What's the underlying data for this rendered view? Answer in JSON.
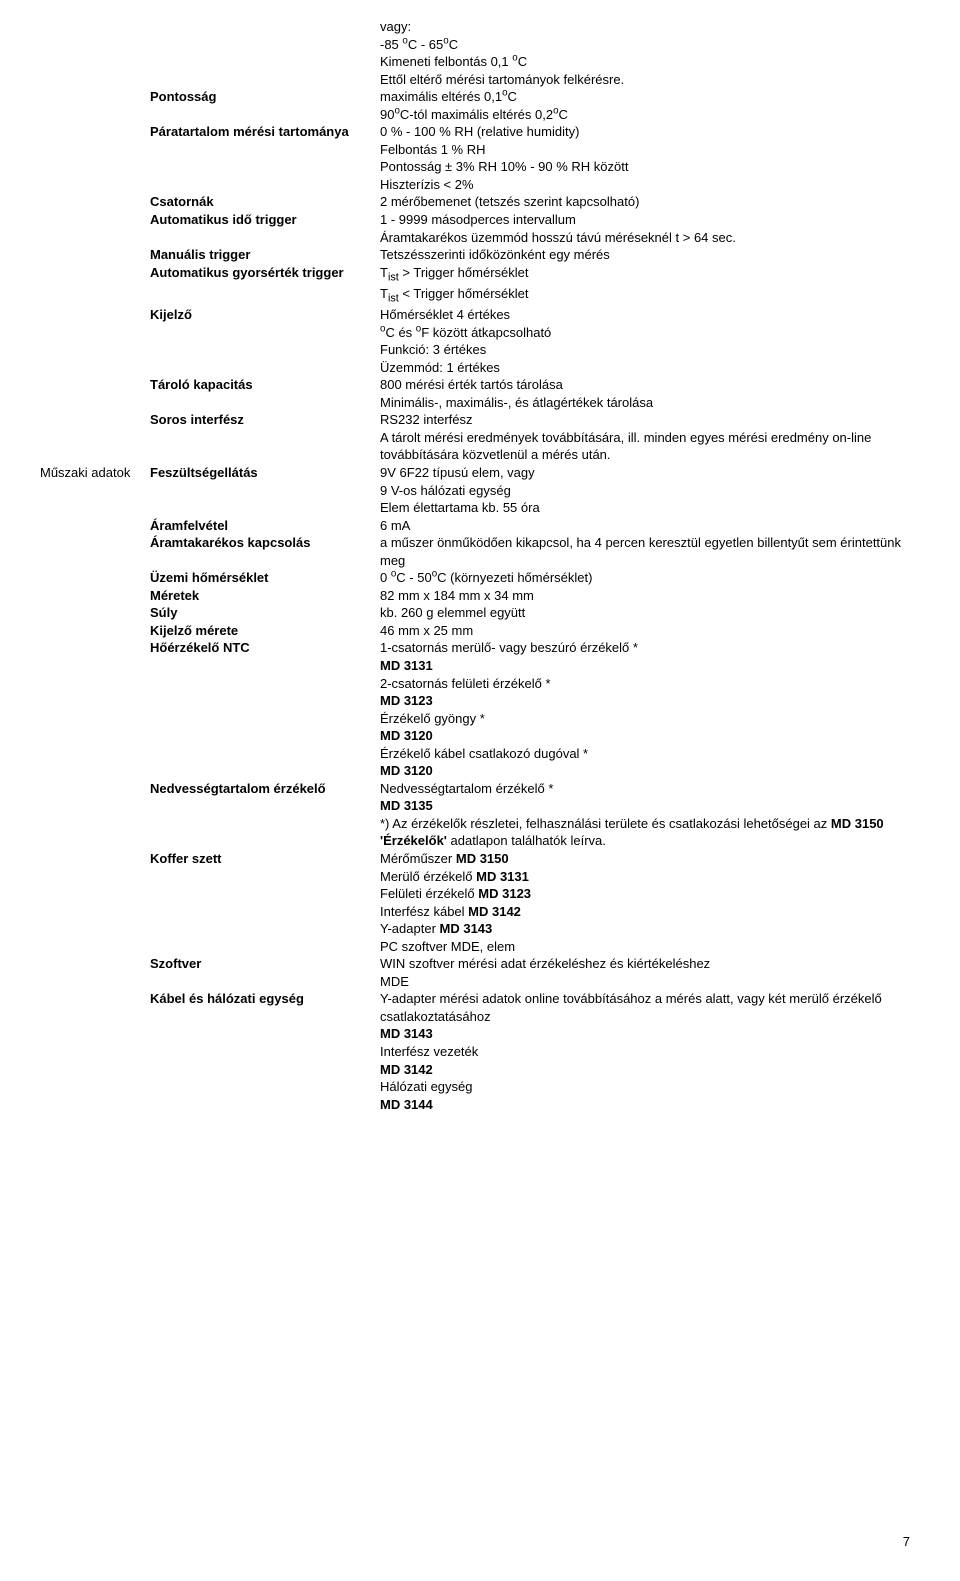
{
  "side_label": "Műszaki adatok",
  "rows": [
    {
      "label": "",
      "value": [
        "vagy:",
        "-85 °C  - 65°C",
        "Kimeneti felbontás 0,1 °C",
        "Ettől eltérő mérési tartományok felkérésre."
      ]
    },
    {
      "label": "Pontosság",
      "value": [
        "maximális eltérés 0,1°C",
        "90°C-tól maximális eltérés 0,2°C"
      ]
    },
    {
      "label": "Páratartalom mérési tartománya",
      "value": [
        "0 % - 100 % RH (relative humidity)",
        "Felbontás 1 % RH",
        "Pontosság ± 3% RH 10% - 90 % RH között",
        "Hiszterízis < 2%"
      ]
    },
    {
      "label": "Csatornák",
      "value": [
        "2 mérőbemenet (tetszés szerint kapcsolható)"
      ]
    },
    {
      "label": "Automatikus idő trigger",
      "value": [
        "1 - 9999 másodperces intervallum",
        "Áramtakarékos üzemmód hosszú távú méréseknél  t > 64 sec."
      ]
    },
    {
      "label": "Manuális trigger",
      "value": [
        "Tetszésszerinti időközönként egy mérés"
      ]
    },
    {
      "label": "Automatikus gyorsérték trigger",
      "value": [
        "Tist > Trigger hőmérséklet",
        "Tist < Trigger hőmérséklet"
      ]
    },
    {
      "label": "Kijelző",
      "value": [
        "Hőmérséklet 4 értékes",
        "°C és °F között átkapcsolható",
        "Funkció:   3 értékes",
        "Üzemmód: 1 értékes"
      ]
    },
    {
      "label": "Tároló kapacitás",
      "value": [
        "800 mérési érték tartós tárolása",
        "Minimális-, maximális-, és átlagértékek tárolása"
      ]
    },
    {
      "label": "Soros interfész",
      "value": [
        "RS232 interfész",
        "A tárolt mérési eredmények továbbítására, ill. minden egyes mérési eredmény on-line továbbítására közvetlenül a mérés után."
      ]
    },
    {
      "label": "Feszültségellátás",
      "value": [
        "9V 6F22 típusú elem, vagy",
        "9 V-os hálózati egység",
        "Elem élettartama kb. 55 óra"
      ],
      "side": true
    },
    {
      "label": "Áramfelvétel",
      "value": [
        "6 mA"
      ]
    },
    {
      "label": "Áramtakarékos kapcsolás",
      "value": [
        "a műszer önműködően kikapcsol, ha 4 percen keresztül egyetlen billentyűt sem érintettünk meg"
      ]
    },
    {
      "label": "Üzemi hőmérséklet",
      "value": [
        "0 °C - 50°C (környezeti hőmérséklet)"
      ]
    },
    {
      "label": "Méretek",
      "value": [
        "82 mm x 184 mm x 34 mm"
      ]
    },
    {
      "label": "Súly",
      "value": [
        "kb. 260 g elemmel együtt"
      ]
    },
    {
      "label": "Kijelző mérete",
      "value": [
        "46 mm x 25 mm"
      ]
    },
    {
      "label": "",
      "value": [
        " "
      ]
    },
    {
      "label": "Hőérzékelő NTC",
      "value": [
        "1-csatornás merülő- vagy beszúró érzékelő *",
        "MD 3131",
        "2-csatornás felületi érzékelő *",
        "MD 3123",
        "Érzékelő gyöngy *",
        "MD 3120",
        "Érzékelő kábel csatlakozó dugóval *",
        "MD 3120"
      ]
    },
    {
      "label": "Nedvességtartalom érzékelő",
      "value": [
        "Nedvességtartalom érzékelő *",
        "MD 3135",
        "*) Az érzékelők részletei, felhasználási területe és csatlakozási lehetőségei az MD 3150 'Érzékelők' adatlapon találhatók leírva."
      ]
    },
    {
      "label": "Koffer szett",
      "value": [
        "Mérőműszer MD 3150",
        "Merülő érzékelő MD 3131",
        "Felületi érzékelő MD 3123",
        "Interfész kábel MD 3142",
        "Y-adapter MD 3143",
        "PC szoftver MDE, elem"
      ]
    },
    {
      "label": "Szoftver",
      "value": [
        "WIN szoftver mérési adat érzékeléshez és kiértékeléshez",
        "MDE"
      ]
    },
    {
      "label": "Kábel és hálózati egység",
      "value": [
        "Y-adapter mérési adatok online továbbításához a mérés alatt, vagy két merülő érzékelő csatlakoztatásához",
        "MD 3143",
        "Interfész vezeték",
        "MD 3142",
        "Hálózati egység",
        "MD 3144"
      ]
    }
  ],
  "page_number": "7"
}
